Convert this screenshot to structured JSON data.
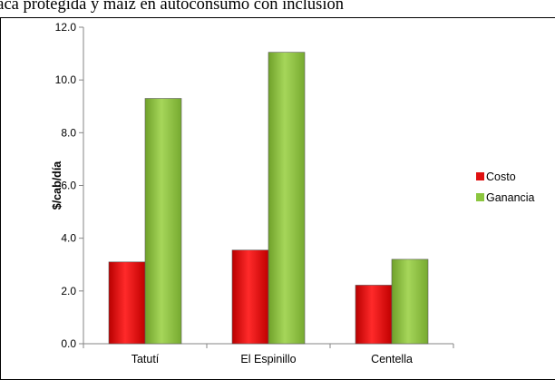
{
  "heading": "vaca protegida y maíz en autoconsumo con inclusión",
  "chart_data": {
    "type": "bar",
    "categories": [
      "Tatutí",
      "El Espinillo",
      "Centella"
    ],
    "series": [
      {
        "name": "Costo",
        "values": [
          3.1,
          3.55,
          2.22
        ],
        "color": "#e01010"
      },
      {
        "name": "Ganancia",
        "values": [
          9.3,
          11.05,
          3.2
        ],
        "color": "#8cc63f"
      }
    ],
    "ylabel": "$/cab/día",
    "ylim": [
      0,
      12
    ],
    "yticks": [
      "0.0",
      "2.0",
      "4.0",
      "6.0",
      "8.0",
      "10.0",
      "12.0"
    ],
    "legend_position": "right"
  }
}
